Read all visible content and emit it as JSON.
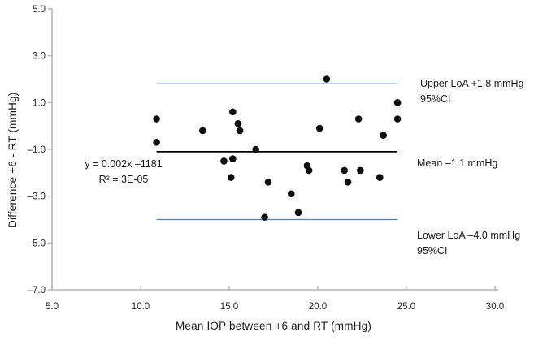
{
  "annotations": {
    "upper_line1": "Upper LoA +1.8 mmHg",
    "upper_line2": "95%CI",
    "mean_label": "Mean –1.1 mmHg",
    "lower_line1": "Lower LoA –4.0 mmHg",
    "lower_line2": "95%CI",
    "equation_line1": "y = 0.002x –1181",
    "equation_line2": "R² = 3E-05"
  },
  "chart_data": {
    "type": "scatter",
    "title": "",
    "xlabel": "Mean IOP between +6 and RT (mmHg)",
    "ylabel": "Difference +6 - RT (mmHg)",
    "xlim": [
      5.0,
      30.0
    ],
    "ylim": [
      -7.0,
      5.0
    ],
    "x_ticks": [
      5.0,
      10.0,
      15.0,
      20.0,
      25.0,
      30.0
    ],
    "x_tick_labels": [
      "5.0",
      "10.0",
      "15.0",
      "20.0",
      "25.0",
      "30.0"
    ],
    "y_ticks": [
      5.0,
      3.0,
      1.0,
      -1.0,
      -3.0,
      -5.0,
      -7.0
    ],
    "y_tick_labels": [
      "5.0",
      "3.0",
      "1.0",
      "–1.0",
      "–3.0",
      "–5.0",
      "–7.0"
    ],
    "grid": false,
    "legend_position": "none",
    "points": [
      [
        10.9,
        0.3
      ],
      [
        10.9,
        -0.7
      ],
      [
        13.5,
        -0.2
      ],
      [
        14.7,
        -1.5
      ],
      [
        15.1,
        -2.2
      ],
      [
        15.2,
        0.6
      ],
      [
        15.2,
        -1.4
      ],
      [
        15.5,
        0.1
      ],
      [
        15.6,
        -0.2
      ],
      [
        16.5,
        -1.0
      ],
      [
        17.0,
        -3.9
      ],
      [
        17.2,
        -2.4
      ],
      [
        18.5,
        -2.9
      ],
      [
        18.9,
        -3.7
      ],
      [
        19.4,
        -1.7
      ],
      [
        19.5,
        -1.9
      ],
      [
        20.1,
        -0.1
      ],
      [
        20.5,
        2.0
      ],
      [
        21.5,
        -1.9
      ],
      [
        21.7,
        -2.4
      ],
      [
        22.3,
        0.3
      ],
      [
        22.4,
        -1.9
      ],
      [
        23.5,
        -2.2
      ],
      [
        23.7,
        -0.4
      ],
      [
        24.5,
        1.0
      ],
      [
        24.5,
        0.3
      ]
    ],
    "reference_lines": [
      {
        "name": "upper_loa",
        "y": 1.8,
        "x_start": 10.9,
        "x_end": 24.5,
        "color": "#4f81bd",
        "width": 1.2,
        "label": "Upper LoA +1.8 mmHg",
        "sublabel": "95%CI"
      },
      {
        "name": "mean",
        "y": -1.1,
        "x_start": 10.9,
        "x_end": 24.5,
        "color": "#000000",
        "width": 1.8,
        "label": "Mean –1.1 mmHg",
        "sublabel": ""
      },
      {
        "name": "lower_loa",
        "y": -4.0,
        "x_start": 10.9,
        "x_end": 24.5,
        "color": "#4f81bd",
        "width": 1.2,
        "label": "Lower LoA –4.0 mmHg",
        "sublabel": "95%CI"
      }
    ],
    "regression": {
      "equation": "y = 0.002x –1181",
      "r_squared": "R² = 3E-05"
    },
    "colors": {
      "point": "#0d0d0d",
      "mean_line": "#000000",
      "loa_line": "#4f81bd",
      "axis": "#a6a6a6",
      "tick_text": "#262626",
      "text": "#1a1a1a",
      "background": "#ffffff"
    }
  }
}
